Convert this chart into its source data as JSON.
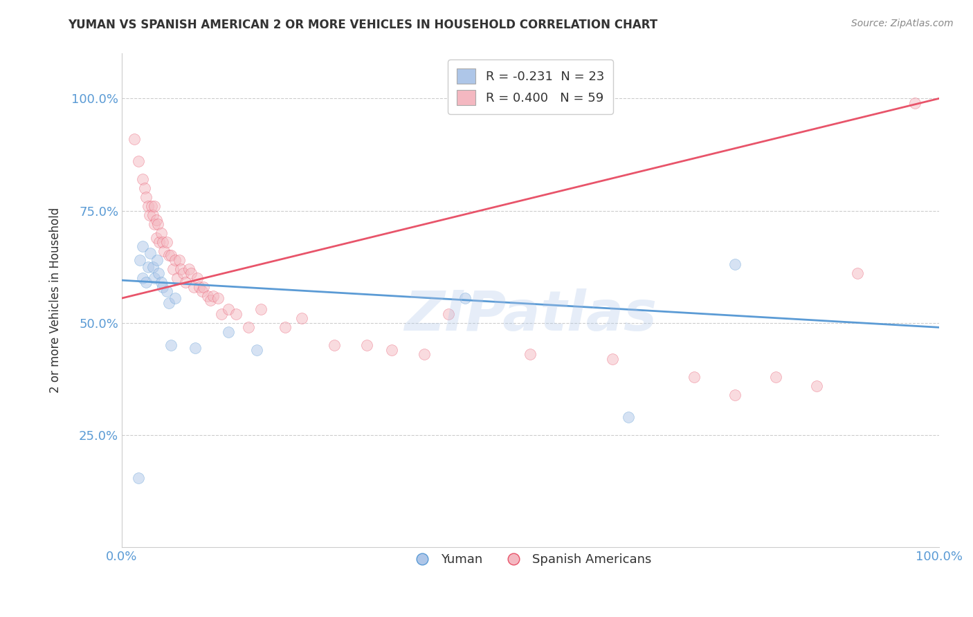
{
  "title": "YUMAN VS SPANISH AMERICAN 2 OR MORE VEHICLES IN HOUSEHOLD CORRELATION CHART",
  "source": "Source: ZipAtlas.com",
  "ylabel": "2 or more Vehicles in Household",
  "xlim": [
    0.0,
    1.0
  ],
  "ylim": [
    0.0,
    1.1
  ],
  "xtick_positions": [
    0.0,
    1.0
  ],
  "xtick_labels": [
    "0.0%",
    "100.0%"
  ],
  "ytick_positions": [
    0.25,
    0.5,
    0.75,
    1.0
  ],
  "ytick_labels": [
    "25.0%",
    "50.0%",
    "75.0%",
    "100.0%"
  ],
  "legend_entry_yuman": "R = -0.231  N = 23",
  "legend_entry_spanish": "R = 0.400   N = 59",
  "legend_label_yuman": "Yuman",
  "legend_label_spanish": "Spanish Americans",
  "yuman_color": "#aec6e8",
  "spanish_color": "#f4b8c1",
  "yuman_line_color": "#5b9bd5",
  "spanish_line_color": "#e8546a",
  "watermark": "ZIPatlas",
  "background_color": "#ffffff",
  "grid_color": "#cccccc",
  "title_color": "#333333",
  "axis_label_color": "#5b9bd5",
  "yuman_points_x": [
    0.02,
    0.022,
    0.025,
    0.025,
    0.03,
    0.032,
    0.035,
    0.038,
    0.04,
    0.043,
    0.045,
    0.048,
    0.05,
    0.055,
    0.058,
    0.06,
    0.065,
    0.09,
    0.13,
    0.165,
    0.42,
    0.62,
    0.75
  ],
  "yuman_points_y": [
    0.155,
    0.64,
    0.67,
    0.6,
    0.59,
    0.625,
    0.655,
    0.625,
    0.6,
    0.64,
    0.61,
    0.59,
    0.58,
    0.57,
    0.545,
    0.45,
    0.555,
    0.445,
    0.48,
    0.44,
    0.555,
    0.29,
    0.63
  ],
  "spanish_points_x": [
    0.015,
    0.02,
    0.025,
    0.028,
    0.03,
    0.032,
    0.034,
    0.036,
    0.038,
    0.04,
    0.04,
    0.042,
    0.042,
    0.044,
    0.046,
    0.048,
    0.05,
    0.052,
    0.055,
    0.058,
    0.06,
    0.063,
    0.065,
    0.068,
    0.07,
    0.072,
    0.075,
    0.078,
    0.082,
    0.085,
    0.088,
    0.092,
    0.095,
    0.098,
    0.1,
    0.105,
    0.108,
    0.112,
    0.118,
    0.122,
    0.13,
    0.14,
    0.155,
    0.17,
    0.2,
    0.22,
    0.26,
    0.3,
    0.33,
    0.37,
    0.4,
    0.5,
    0.6,
    0.7,
    0.75,
    0.8,
    0.85,
    0.9,
    0.97
  ],
  "spanish_points_y": [
    0.91,
    0.86,
    0.82,
    0.8,
    0.78,
    0.76,
    0.74,
    0.76,
    0.74,
    0.76,
    0.72,
    0.73,
    0.69,
    0.72,
    0.68,
    0.7,
    0.68,
    0.66,
    0.68,
    0.65,
    0.65,
    0.62,
    0.64,
    0.6,
    0.64,
    0.62,
    0.61,
    0.59,
    0.62,
    0.61,
    0.58,
    0.6,
    0.58,
    0.57,
    0.58,
    0.56,
    0.55,
    0.56,
    0.555,
    0.52,
    0.53,
    0.52,
    0.49,
    0.53,
    0.49,
    0.51,
    0.45,
    0.45,
    0.44,
    0.43,
    0.52,
    0.43,
    0.42,
    0.38,
    0.34,
    0.38,
    0.36,
    0.61,
    0.99
  ],
  "yuman_line_x": [
    0.0,
    1.0
  ],
  "yuman_line_y": [
    0.595,
    0.49
  ],
  "spanish_line_x": [
    0.0,
    1.0
  ],
  "spanish_line_y": [
    0.555,
    1.0
  ],
  "marker_size": 130,
  "marker_alpha": 0.5,
  "line_width": 2.0
}
